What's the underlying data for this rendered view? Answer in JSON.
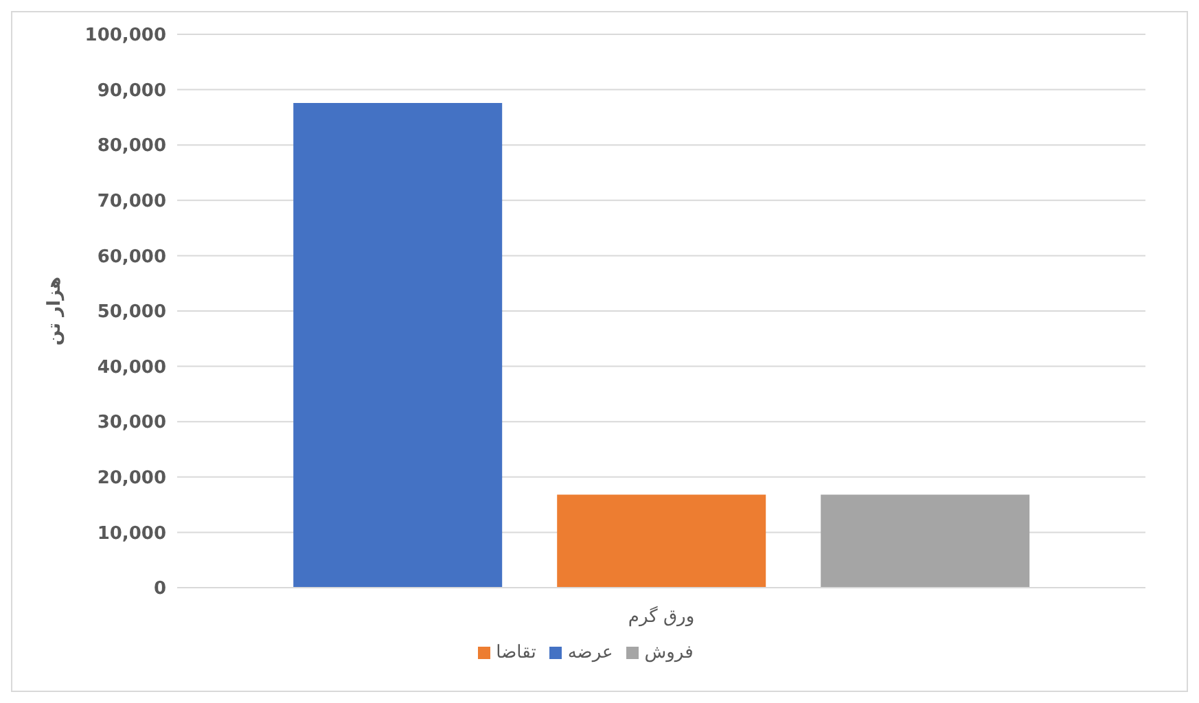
{
  "chart_data": {
    "type": "bar",
    "ylabel": "هزار تن",
    "categories": [
      "ورق گرم"
    ],
    "series": [
      {
        "name": "عرضه",
        "color": "#4472c4",
        "values": [
          87600
        ]
      },
      {
        "name": "تقاضا",
        "color": "#ed7d31",
        "values": [
          16800
        ]
      },
      {
        "name": "فروش",
        "color": "#a5a5a5",
        "values": [
          16800
        ]
      }
    ],
    "ylim": [
      0,
      100000
    ],
    "yticks": [
      0,
      {
        "value": 10000,
        "label": "10,000"
      },
      {
        "value": 20000,
        "label": "20,000"
      },
      {
        "value": 30000,
        "label": "30,000"
      },
      {
        "value": 40000,
        "label": "40,000"
      },
      {
        "value": 50000,
        "label": "50,000"
      },
      {
        "value": 60000,
        "label": "60,000"
      },
      {
        "value": 70000,
        "label": "70,000"
      },
      {
        "value": 80000,
        "label": "80,000"
      },
      {
        "value": 90000,
        "label": "90,000"
      },
      {
        "value": 100000,
        "label": "100,000"
      }
    ],
    "grid": "y",
    "legend": "bottom"
  }
}
